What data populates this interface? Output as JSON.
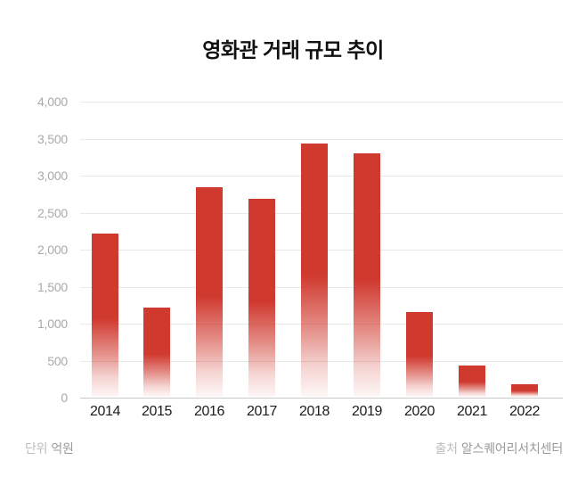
{
  "title": "영화관 거래 규모 추이",
  "footer": {
    "unit_label": "단위",
    "unit_value": "억원",
    "source_label": "출처",
    "source_value": "알스퀘어리서치센터"
  },
  "colors": {
    "bar": "#d0392e",
    "grid": "#e9e9e9",
    "baseline": "#c9c9c9",
    "y_axis_text": "#a9a9ac",
    "x_axis_text": "#1c1c1e",
    "title_text": "#111111"
  },
  "chart_data": {
    "type": "bar",
    "title": "영화관 거래 규모 추이",
    "categories": [
      "2014",
      "2015",
      "2016",
      "2017",
      "2018",
      "2019",
      "2020",
      "2021",
      "2022"
    ],
    "values": [
      2210,
      1210,
      2830,
      2680,
      3420,
      3290,
      1150,
      420,
      170
    ],
    "xlabel": "",
    "ylabel": "",
    "unit": "억원",
    "ylim": [
      0,
      4000
    ],
    "ytick_interval": 500,
    "ytick_labels": [
      "4,000",
      "3,500",
      "3,000",
      "2,500",
      "2,000",
      "1,500",
      "1,000",
      "500",
      "0"
    ],
    "grid": "horizontal",
    "legend_position": "none",
    "bar_style": "solid top fading to transparent at bottom"
  }
}
